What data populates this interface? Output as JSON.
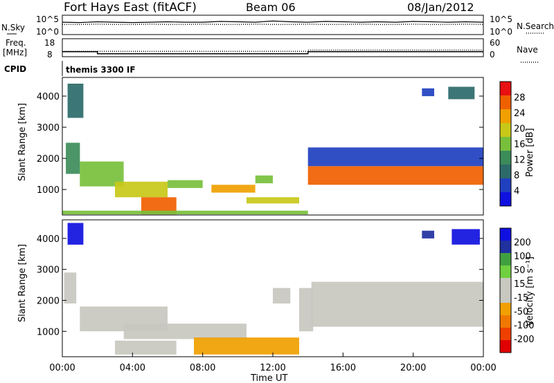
{
  "header": {
    "station": "Fort Hays East (fitACF)",
    "beam": "Beam 06",
    "date": "08/Jan/2012",
    "cpid_label": "CPID",
    "cpid_value": "themis 3300 IF"
  },
  "chart_data": [
    {
      "type": "line",
      "panel": "noise",
      "left_label": "N.Sky",
      "right_label": "N.Search",
      "left_ticks": [
        "10^5",
        "10^0"
      ],
      "right_ticks": [
        "10^5",
        "10^0"
      ],
      "scale": "log",
      "series": [
        {
          "name": "N.Sky",
          "style": "solid",
          "values": [
            3.2,
            3.1,
            3.3,
            3.2,
            3.1,
            3.2,
            3.3,
            3.2,
            3.2,
            3.4,
            3.3,
            3.2,
            3.5,
            3.3,
            3.2,
            3.4,
            3.3,
            3.2,
            3.3,
            3.2,
            3.4,
            3.3,
            3.2,
            3.3,
            3.2
          ]
        },
        {
          "name": "N.Search",
          "style": "dotted",
          "values": [
            2.6,
            2.6,
            2.7,
            2.6,
            2.6,
            2.7,
            2.6,
            2.6,
            2.7,
            2.6,
            2.6,
            2.7,
            2.6,
            2.6,
            2.7,
            2.6,
            2.6,
            2.7,
            2.6,
            2.6,
            2.7,
            2.6,
            2.6,
            2.7,
            2.6
          ]
        }
      ]
    },
    {
      "type": "line",
      "panel": "freq",
      "left_label": "Freq.",
      "left_unit": "[MHz]",
      "right_label": "Nave",
      "left_ticks": [
        "18",
        "8"
      ],
      "right_ticks": [
        "60",
        "0"
      ],
      "series": [
        {
          "name": "Freq.",
          "style": "solid",
          "steps": [
            [
              0,
              10.8
            ],
            [
              2,
              10.8
            ],
            [
              2,
              9.6
            ],
            [
              14,
              9.6
            ],
            [
              14,
              10.8
            ],
            [
              24,
              10.8
            ]
          ]
        },
        {
          "name": "Nave",
          "style": "dotted",
          "steps": [
            [
              0,
              18
            ],
            [
              14,
              18
            ],
            [
              14,
              22
            ],
            [
              24,
              22
            ]
          ]
        }
      ]
    },
    {
      "type": "heatmap",
      "panel": "power",
      "ylabel": "Slant Range [km]",
      "yticks": [
        "4000",
        "3000",
        "2000",
        "1000"
      ],
      "ylim": [
        180,
        4600
      ],
      "xlim": [
        0,
        24
      ],
      "colorbar": {
        "label": "Power [dB]",
        "ticks": [
          "28",
          "24",
          "20",
          "16",
          "12",
          "8",
          "4"
        ],
        "range": [
          0,
          30
        ]
      },
      "regions": [
        {
          "t0": 0.3,
          "t1": 1.2,
          "r0": 3300,
          "r1": 4400,
          "v": 8
        },
        {
          "t0": 0.2,
          "t1": 1.0,
          "r0": 1500,
          "r1": 2500,
          "v": 12
        },
        {
          "t0": 1.0,
          "t1": 3.5,
          "r0": 1100,
          "r1": 1900,
          "v": 14
        },
        {
          "t0": 3.0,
          "t1": 6.0,
          "r0": 750,
          "r1": 1250,
          "v": 17
        },
        {
          "t0": 4.5,
          "t1": 6.5,
          "r0": 200,
          "r1": 750,
          "v": 26
        },
        {
          "t0": 6.0,
          "t1": 8.0,
          "r0": 1050,
          "r1": 1300,
          "v": 16
        },
        {
          "t0": 8.5,
          "t1": 11.0,
          "r0": 900,
          "r1": 1150,
          "v": 20
        },
        {
          "t0": 11.0,
          "t1": 12.0,
          "r0": 1200,
          "r1": 1450,
          "v": 16
        },
        {
          "t0": 10.5,
          "t1": 13.5,
          "r0": 550,
          "r1": 750,
          "v": 18
        },
        {
          "t0": 14.0,
          "t1": 24.0,
          "r0": 1150,
          "r1": 1750,
          "v": 24
        },
        {
          "t0": 14.0,
          "t1": 24.0,
          "r0": 1750,
          "r1": 2350,
          "v": 6
        },
        {
          "t0": 20.5,
          "t1": 21.2,
          "r0": 4000,
          "r1": 4250,
          "v": 6
        },
        {
          "t0": 22.0,
          "t1": 23.5,
          "r0": 3900,
          "r1": 4300,
          "v": 7
        },
        {
          "t0": 0.0,
          "t1": 14.0,
          "r0": 200,
          "r1": 320,
          "v": 14
        }
      ]
    },
    {
      "type": "heatmap",
      "panel": "velocity",
      "ylabel": "Slant Range [km]",
      "yticks": [
        "4000",
        "3000",
        "2000",
        "1000"
      ],
      "ylim": [
        180,
        4600
      ],
      "xlim": [
        0,
        24
      ],
      "xlabel": "Time UT",
      "xticks": [
        "00:00",
        "04:00",
        "08:00",
        "12:00",
        "16:00",
        "20:00",
        "00:00"
      ],
      "colorbar": {
        "label": "Velocity [m s⁻¹]",
        "ticks": [
          "200",
          "100",
          "50",
          "15",
          "-15",
          "-50",
          "-100",
          "-200"
        ],
        "range": [
          -250,
          250
        ]
      },
      "regions": [
        {
          "t0": 0.3,
          "t1": 1.2,
          "r0": 3800,
          "r1": 4500,
          "v": 220
        },
        {
          "t0": 0.1,
          "t1": 0.8,
          "r0": 1900,
          "r1": 2900,
          "v": 0
        },
        {
          "t0": 1.0,
          "t1": 6.0,
          "r0": 1000,
          "r1": 1800,
          "v": 35
        },
        {
          "t0": 3.5,
          "t1": 10.5,
          "r0": 750,
          "r1": 1250,
          "v": 0
        },
        {
          "t0": 3.0,
          "t1": 6.5,
          "r0": 250,
          "r1": 700,
          "v": 40
        },
        {
          "t0": 7.5,
          "t1": 13.5,
          "r0": 250,
          "r1": 800,
          "v": -60
        },
        {
          "t0": 12.0,
          "t1": 13.0,
          "r0": 1900,
          "r1": 2400,
          "v": -40
        },
        {
          "t0": 13.5,
          "t1": 14.3,
          "r0": 1000,
          "r1": 2400,
          "v": 35
        },
        {
          "t0": 14.2,
          "t1": 24.0,
          "r0": 1150,
          "r1": 2000,
          "v": 0
        },
        {
          "t0": 14.2,
          "t1": 24.0,
          "r0": 2000,
          "r1": 2600,
          "v": -5
        },
        {
          "t0": 20.5,
          "t1": 21.2,
          "r0": 4000,
          "r1": 4250,
          "v": 190
        },
        {
          "t0": 22.2,
          "t1": 23.8,
          "r0": 3800,
          "r1": 4300,
          "v": 200
        }
      ]
    }
  ],
  "colors": {
    "power_scale": [
      "#1010e0",
      "#2040c0",
      "#2d6a6a",
      "#3c8c5a",
      "#78c03c",
      "#c8c818",
      "#f0a000",
      "#f06000",
      "#e81010"
    ],
    "velocity_scale": [
      "#e00000",
      "#f04000",
      "#f07800",
      "#f0a000",
      "#c8c8c0",
      "#c8c8c0",
      "#70d040",
      "#40a040",
      "#2030a0",
      "#1010e0"
    ]
  }
}
